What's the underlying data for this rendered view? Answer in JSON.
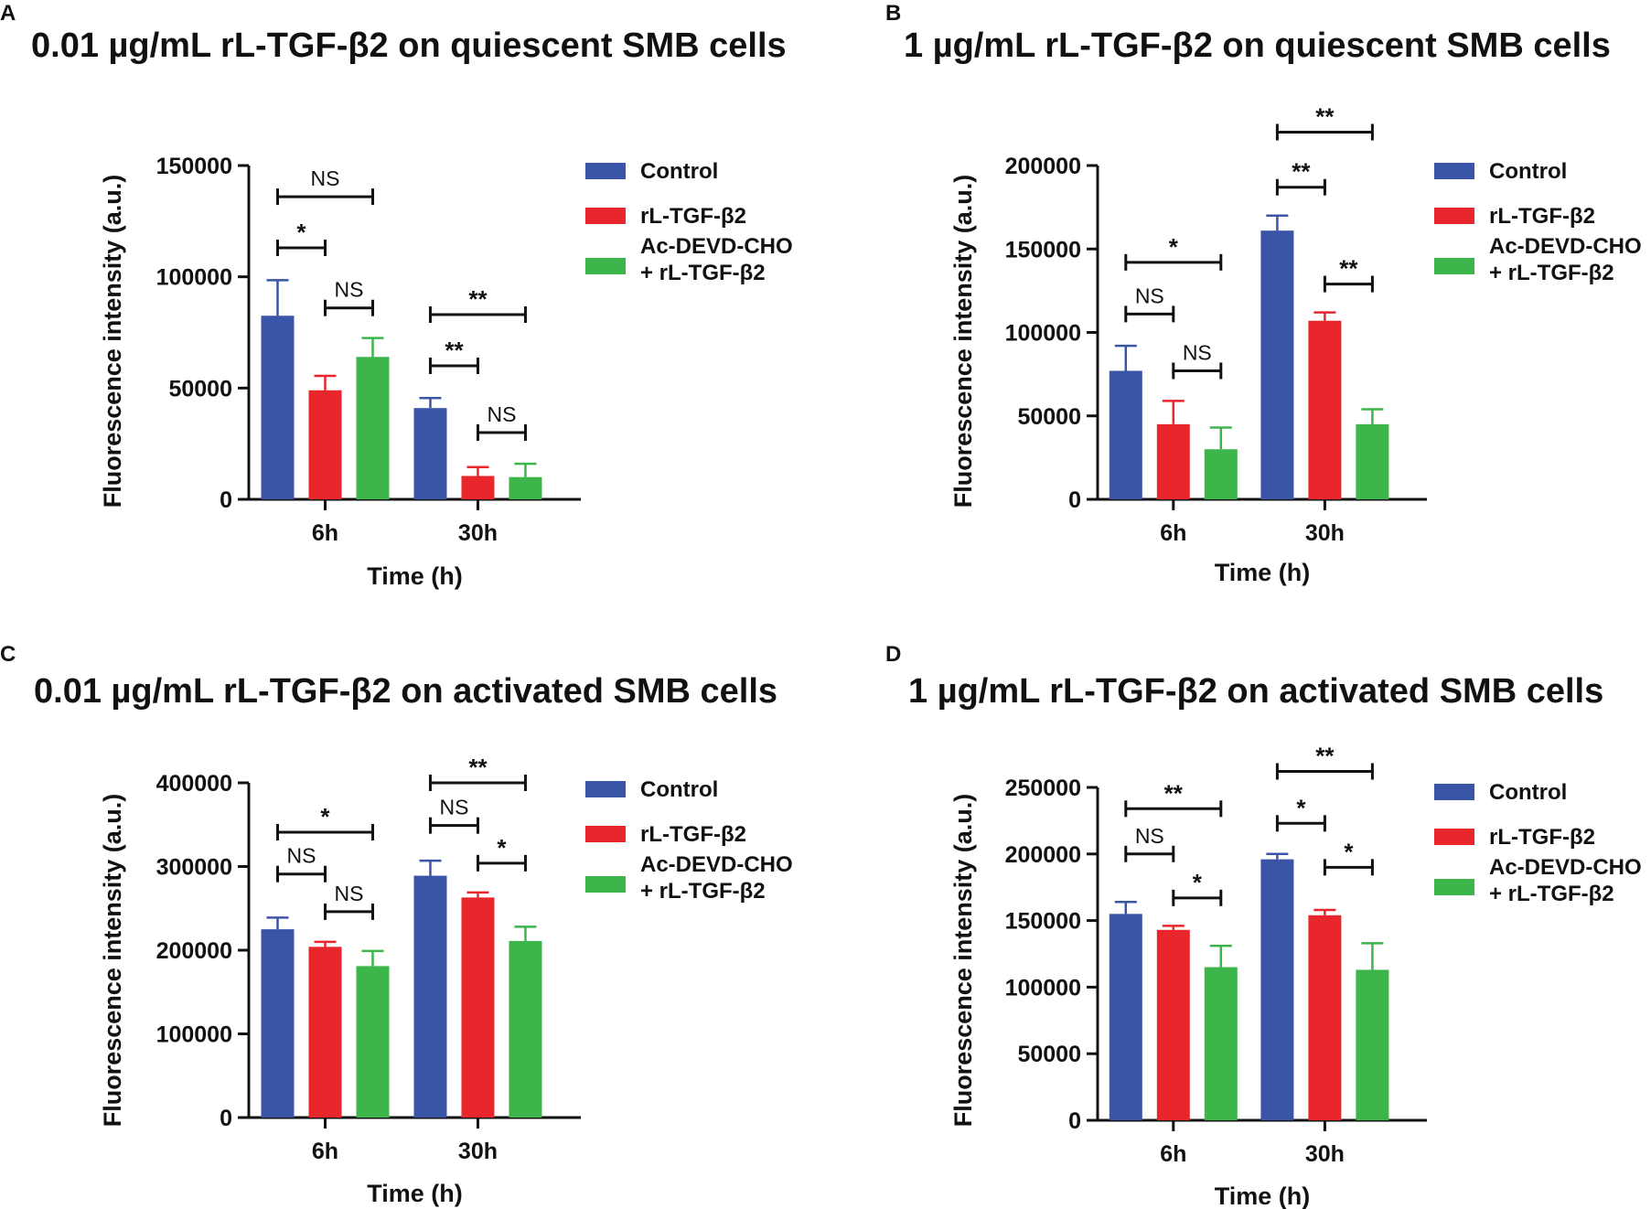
{
  "colors": {
    "control": "#3a55a8",
    "rl_tgf": "#e8262b",
    "ac_devd": "#3cb54a",
    "axis": "#111111"
  },
  "chart_data": [
    {
      "type": "bar",
      "panel_label": "A",
      "title": "0.01 µg/mL rL-TGF-β2 on quiescent SMB cells",
      "xlabel": "Time (h)",
      "ylabel": "Fluorescence intensity (a.u.)",
      "ylim": [
        0,
        150000
      ],
      "yticks": [
        0,
        50000,
        100000,
        150000
      ],
      "categories": [
        "6h",
        "30h"
      ],
      "legend": [
        "Control",
        "rL-TGF-β2",
        [
          "Ac-DEVD-CHO",
          "+ rL-TGF-β2"
        ]
      ],
      "series": [
        {
          "name": "Control",
          "color_key": "control",
          "values": [
            82500,
            41000
          ],
          "errors": [
            16000,
            4500
          ]
        },
        {
          "name": "rL-TGF-β2",
          "color_key": "rl_tgf",
          "values": [
            49000,
            10500
          ],
          "errors": [
            6500,
            4000
          ]
        },
        {
          "name": "Ac-DEVD-CHO + rL-TGF-β2",
          "color_key": "ac_devd",
          "values": [
            64000,
            10000
          ],
          "errors": [
            8500,
            6000
          ]
        }
      ],
      "annotations": [
        {
          "label": "NS",
          "group": 0,
          "from": 0,
          "to": 2,
          "level": 136000
        },
        {
          "label": "*",
          "group": 0,
          "from": 0,
          "to": 1,
          "level": 113000
        },
        {
          "label": "NS",
          "group": 0,
          "from": 1,
          "to": 2,
          "level": 86000
        },
        {
          "label": "**",
          "group": 1,
          "from": 0,
          "to": 2,
          "level": 83000
        },
        {
          "label": "**",
          "group": 1,
          "from": 0,
          "to": 1,
          "level": 60000
        },
        {
          "label": "NS",
          "group": 1,
          "from": 1,
          "to": 2,
          "level": 30000
        }
      ]
    },
    {
      "type": "bar",
      "panel_label": "B",
      "title": "1 µg/mL rL-TGF-β2 on quiescent SMB cells",
      "xlabel": "Time (h)",
      "ylabel": "Fluorescence intensity (a.u.)",
      "ylim": [
        0,
        200000
      ],
      "yticks": [
        0,
        50000,
        100000,
        150000,
        200000
      ],
      "categories": [
        "6h",
        "30h"
      ],
      "legend": [
        "Control",
        "rL-TGF-β2",
        [
          "Ac-DEVD-CHO",
          "+ rL-TGF-β2"
        ]
      ],
      "series": [
        {
          "name": "Control",
          "color_key": "control",
          "values": [
            77000,
            161000
          ],
          "errors": [
            15000,
            9000
          ]
        },
        {
          "name": "rL-TGF-β2",
          "color_key": "rl_tgf",
          "values": [
            45000,
            107000
          ],
          "errors": [
            14000,
            5000
          ]
        },
        {
          "name": "Ac-DEVD-CHO + rL-TGF-β2",
          "color_key": "ac_devd",
          "values": [
            30000,
            45000
          ],
          "errors": [
            13000,
            9000
          ]
        }
      ],
      "annotations": [
        {
          "label": "*",
          "group": 0,
          "from": 0,
          "to": 2,
          "level": 142000
        },
        {
          "label": "NS",
          "group": 0,
          "from": 0,
          "to": 1,
          "level": 111000
        },
        {
          "label": "NS",
          "group": 0,
          "from": 1,
          "to": 2,
          "level": 77000
        },
        {
          "label": "**",
          "group": 1,
          "from": 0,
          "to": 2,
          "level": 220000
        },
        {
          "label": "**",
          "group": 1,
          "from": 0,
          "to": 1,
          "level": 187000
        },
        {
          "label": "**",
          "group": 1,
          "from": 1,
          "to": 2,
          "level": 129000
        }
      ]
    },
    {
      "type": "bar",
      "panel_label": "C",
      "title": "0.01 µg/mL rL-TGF-β2 on activated SMB cells",
      "xlabel": "Time (h)",
      "ylabel": "Fluorescence intensity (a.u.)",
      "ylim": [
        0,
        400000
      ],
      "yticks": [
        0,
        100000,
        200000,
        300000,
        400000
      ],
      "categories": [
        "6h",
        "30h"
      ],
      "legend": [
        "Control",
        "rL-TGF-β2",
        [
          "Ac-DEVD-CHO",
          "+ rL-TGF-β2"
        ]
      ],
      "series": [
        {
          "name": "Control",
          "color_key": "control",
          "values": [
            225000,
            289000
          ],
          "errors": [
            14000,
            18000
          ]
        },
        {
          "name": "rL-TGF-β2",
          "color_key": "rl_tgf",
          "values": [
            204000,
            263000
          ],
          "errors": [
            6000,
            6000
          ]
        },
        {
          "name": "Ac-DEVD-CHO + rL-TGF-β2",
          "color_key": "ac_devd",
          "values": [
            181000,
            211000
          ],
          "errors": [
            18000,
            17000
          ]
        }
      ],
      "annotations": [
        {
          "label": "*",
          "group": 0,
          "from": 0,
          "to": 2,
          "level": 341000
        },
        {
          "label": "NS",
          "group": 0,
          "from": 0,
          "to": 1,
          "level": 291000
        },
        {
          "label": "NS",
          "group": 0,
          "from": 1,
          "to": 2,
          "level": 246000
        },
        {
          "label": "**",
          "group": 1,
          "from": 0,
          "to": 2,
          "level": 400000
        },
        {
          "label": "NS",
          "group": 1,
          "from": 0,
          "to": 1,
          "level": 349000
        },
        {
          "label": "*",
          "group": 1,
          "from": 1,
          "to": 2,
          "level": 304000
        }
      ]
    },
    {
      "type": "bar",
      "panel_label": "D",
      "title": "1 µg/mL rL-TGF-β2 on activated SMB cells",
      "xlabel": "Time (h)",
      "ylabel": "Fluorescence intensity (a.u.)",
      "ylim": [
        0,
        250000
      ],
      "yticks": [
        0,
        50000,
        100000,
        150000,
        200000,
        250000
      ],
      "categories": [
        "6h",
        "30h"
      ],
      "legend": [
        "Control",
        "rL-TGF-β2",
        [
          "Ac-DEVD-CHO",
          "+ rL-TGF-β2"
        ]
      ],
      "series": [
        {
          "name": "Control",
          "color_key": "control",
          "values": [
            155000,
            196000
          ],
          "errors": [
            9000,
            4000
          ]
        },
        {
          "name": "rL-TGF-β2",
          "color_key": "rl_tgf",
          "values": [
            143000,
            154000
          ],
          "errors": [
            3000,
            4000
          ]
        },
        {
          "name": "Ac-DEVD-CHO + rL-TGF-β2",
          "color_key": "ac_devd",
          "values": [
            115000,
            113000
          ],
          "errors": [
            16000,
            20000
          ]
        }
      ],
      "annotations": [
        {
          "label": "**",
          "group": 0,
          "from": 0,
          "to": 2,
          "level": 234000
        },
        {
          "label": "NS",
          "group": 0,
          "from": 0,
          "to": 1,
          "level": 200000
        },
        {
          "label": "*",
          "group": 0,
          "from": 1,
          "to": 2,
          "level": 167000
        },
        {
          "label": "**",
          "group": 1,
          "from": 0,
          "to": 2,
          "level": 262000
        },
        {
          "label": "*",
          "group": 1,
          "from": 0,
          "to": 1,
          "level": 223000
        },
        {
          "label": "*",
          "group": 1,
          "from": 1,
          "to": 2,
          "level": 190000
        }
      ]
    }
  ]
}
